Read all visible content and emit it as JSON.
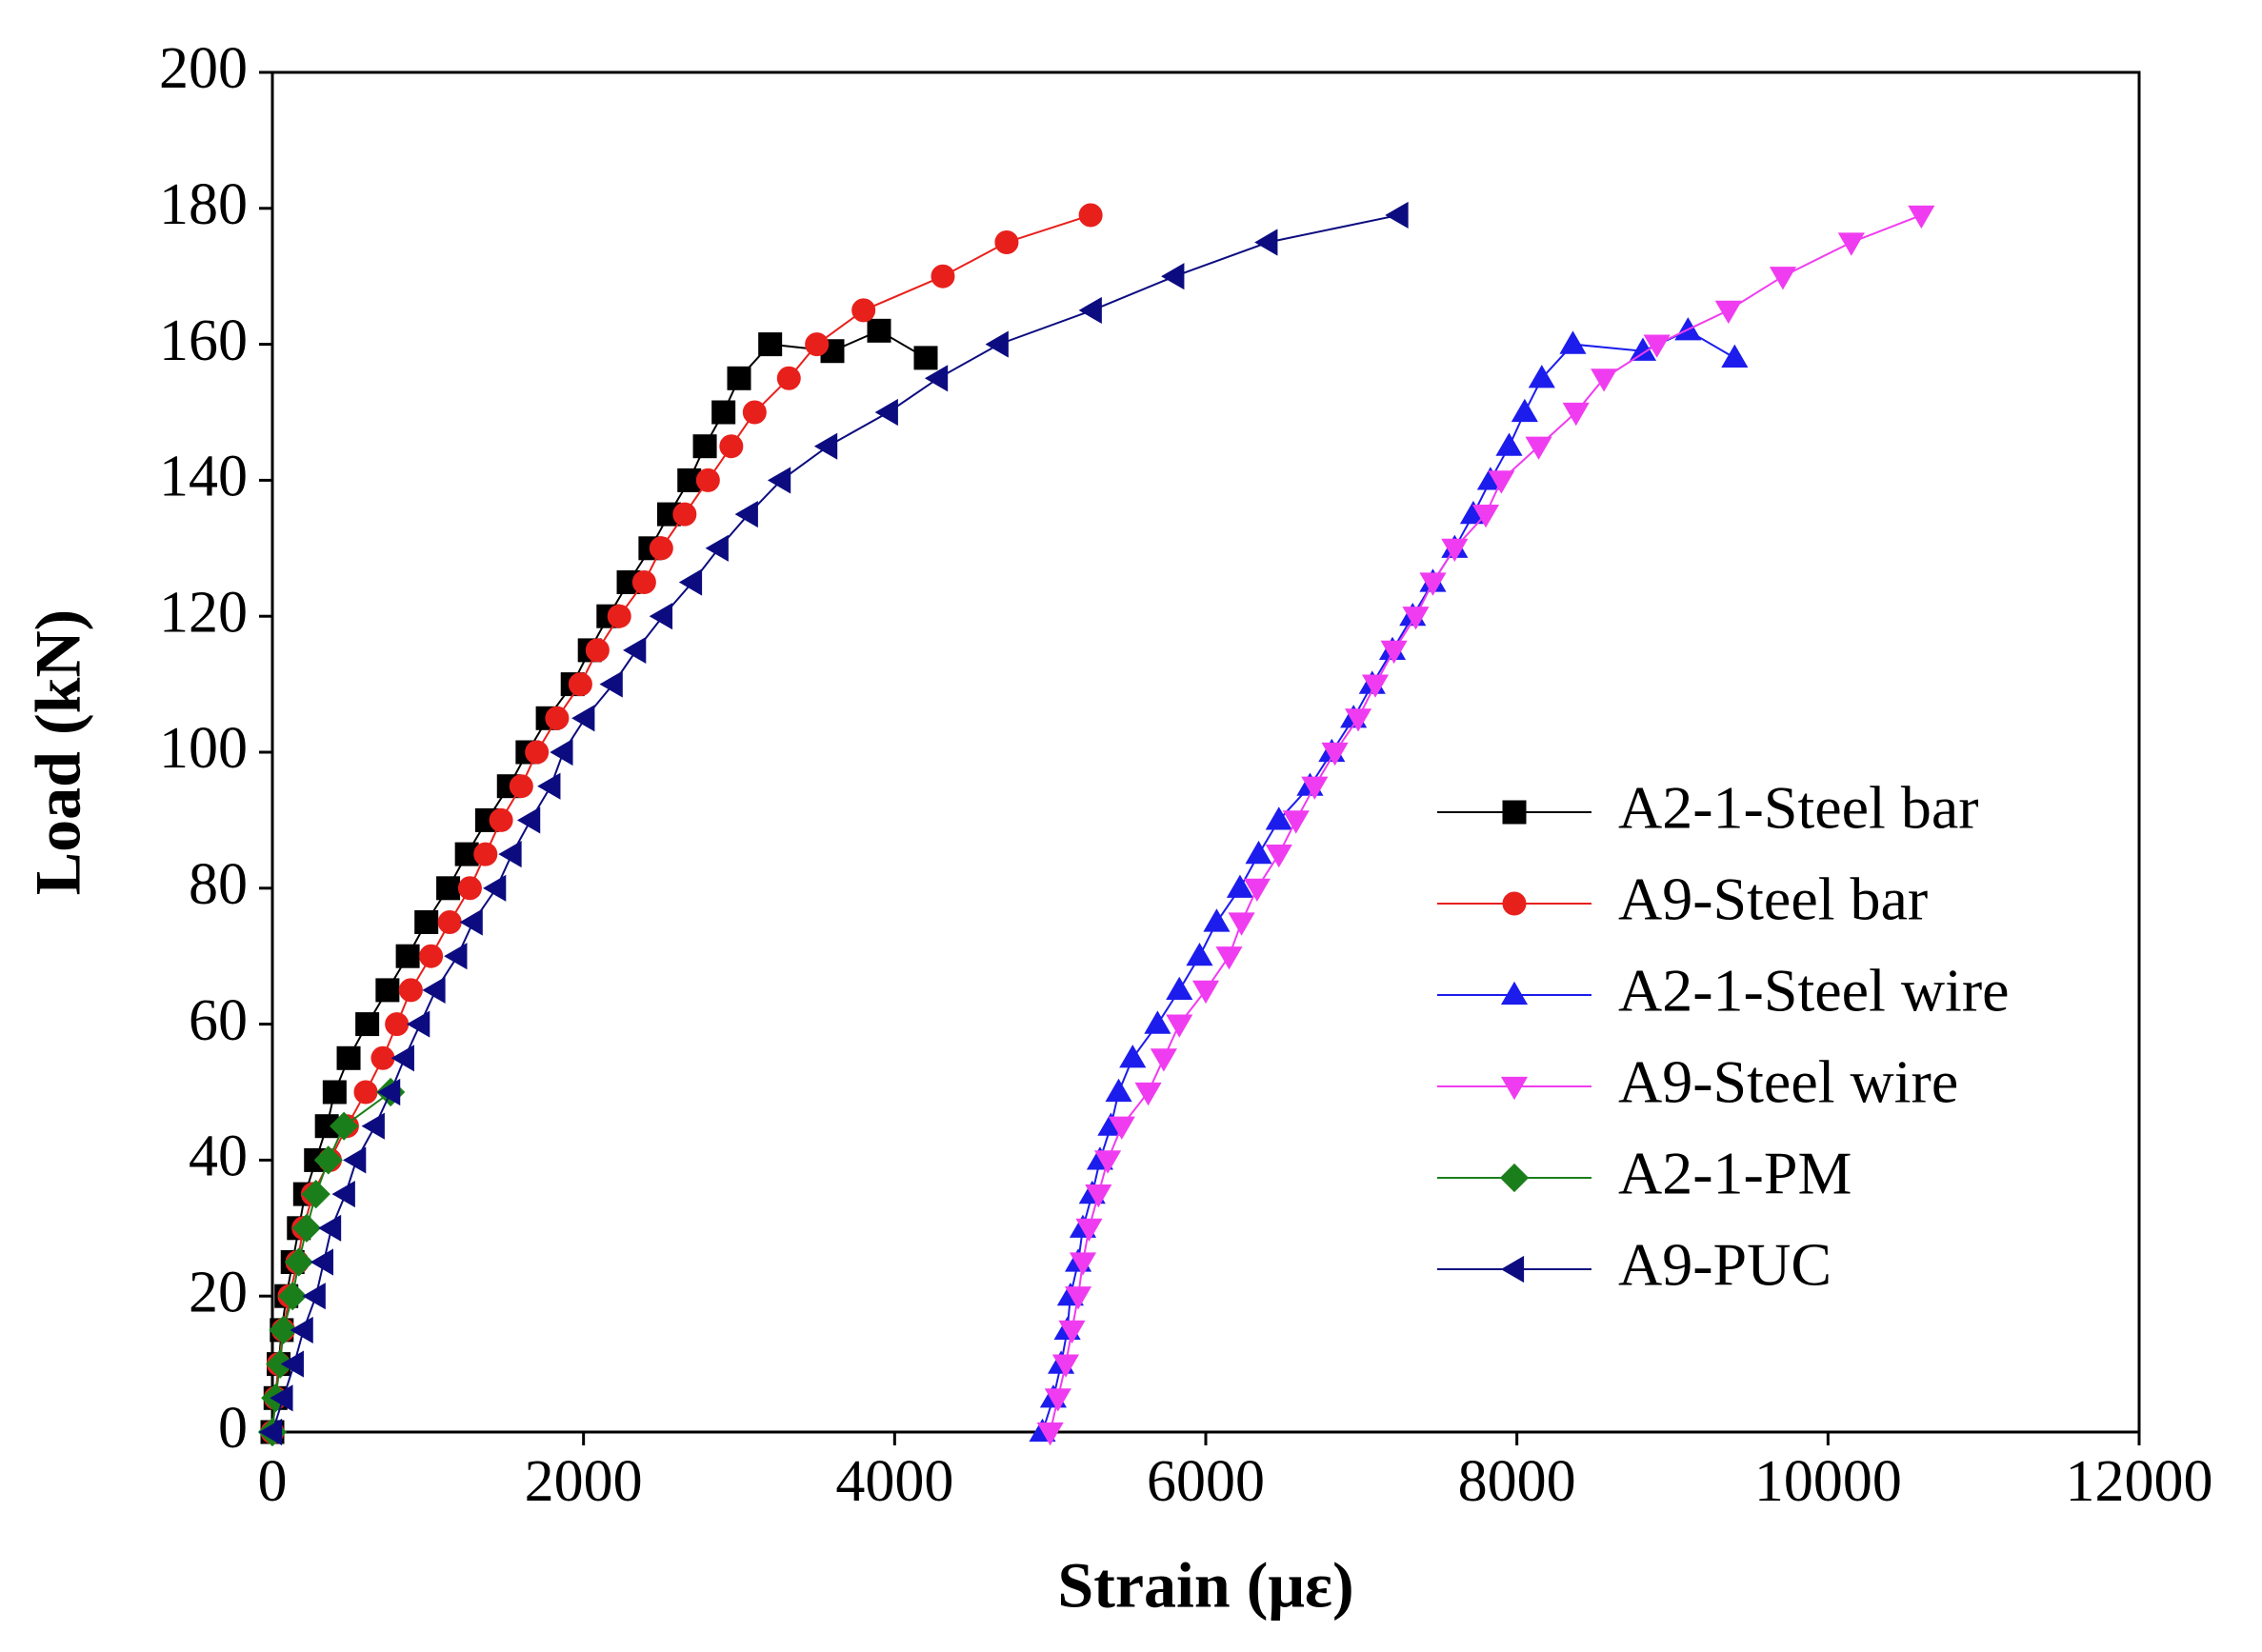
{
  "chart_data": {
    "type": "line",
    "xlabel": "Strain (με)",
    "ylabel": "Load (kN)",
    "xlim": [
      0,
      12000
    ],
    "xticks": [
      0,
      2000,
      4000,
      6000,
      8000,
      10000,
      12000
    ],
    "ylim": [
      0,
      200
    ],
    "yticks": [
      0,
      20,
      40,
      60,
      80,
      100,
      120,
      140,
      160,
      180,
      200
    ],
    "legend": "lower right",
    "series": [
      {
        "name": "A2-1-Steel bar",
        "color": "#000000",
        "marker": "square",
        "x": [
          0,
          20,
          40,
          60,
          90,
          130,
          170,
          210,
          280,
          350,
          400,
          490,
          610,
          740,
          870,
          990,
          1130,
          1250,
          1380,
          1520,
          1640,
          1770,
          1930,
          2040,
          2160,
          2290,
          2430,
          2550,
          2680,
          2780,
          2900,
          3000,
          3200,
          3600,
          3900,
          4200
        ],
        "values": [
          0,
          5,
          10,
          15,
          20,
          25,
          30,
          35,
          40,
          45,
          50,
          55,
          60,
          65,
          70,
          75,
          80,
          85,
          90,
          95,
          100,
          105,
          110,
          115,
          120,
          125,
          130,
          135,
          140,
          145,
          150,
          155,
          160,
          159,
          162,
          158
        ]
      },
      {
        "name": "A9-Steel bar",
        "color": "#e8201c",
        "marker": "circle",
        "x": [
          0,
          20,
          40,
          70,
          110,
          160,
          200,
          260,
          370,
          480,
          600,
          710,
          800,
          890,
          1020,
          1140,
          1270,
          1370,
          1470,
          1600,
          1700,
          1830,
          1980,
          2090,
          2230,
          2390,
          2500,
          2650,
          2800,
          2950,
          3100,
          3320,
          3500,
          3800,
          4310,
          4720,
          5260
        ],
        "values": [
          0,
          5,
          10,
          15,
          20,
          25,
          30,
          35,
          40,
          45,
          50,
          55,
          60,
          65,
          70,
          75,
          80,
          85,
          90,
          95,
          100,
          105,
          110,
          115,
          120,
          125,
          130,
          135,
          140,
          145,
          150,
          155,
          160,
          165,
          170,
          175,
          179
        ]
      },
      {
        "name": "A2-1-Steel wire",
        "color": "#1c1ced",
        "marker": "triangle-up",
        "x": [
          4950,
          5020,
          5070,
          5110,
          5130,
          5180,
          5210,
          5270,
          5320,
          5390,
          5440,
          5530,
          5690,
          5830,
          5960,
          6070,
          6220,
          6340,
          6470,
          6670,
          6810,
          6950,
          7070,
          7200,
          7330,
          7460,
          7600,
          7720,
          7830,
          7950,
          8050,
          8160,
          8360,
          8810,
          9100,
          9400
        ],
        "values": [
          0,
          5,
          10,
          15,
          20,
          25,
          30,
          35,
          40,
          45,
          50,
          55,
          60,
          65,
          70,
          75,
          80,
          85,
          90,
          95,
          100,
          105,
          110,
          115,
          120,
          125,
          130,
          135,
          140,
          145,
          150,
          155,
          160,
          159,
          162,
          158
        ]
      },
      {
        "name": "A9-Steel wire",
        "color": "#f03cf0",
        "marker": "triangle-down",
        "x": [
          5000,
          5050,
          5100,
          5140,
          5180,
          5210,
          5250,
          5310,
          5370,
          5460,
          5630,
          5730,
          5830,
          6000,
          6150,
          6230,
          6330,
          6470,
          6580,
          6700,
          6830,
          6980,
          7090,
          7210,
          7350,
          7460,
          7600,
          7800,
          7900,
          8140,
          8380,
          8560,
          8900,
          9360,
          9710,
          10150,
          10600
        ],
        "values": [
          0,
          5,
          10,
          15,
          20,
          25,
          30,
          35,
          40,
          45,
          50,
          55,
          60,
          65,
          70,
          75,
          80,
          85,
          90,
          95,
          100,
          105,
          110,
          115,
          120,
          125,
          130,
          135,
          140,
          145,
          150,
          155,
          160,
          165,
          170,
          175,
          179
        ]
      },
      {
        "name": "A2-1-PM",
        "color": "#1a7f1a",
        "marker": "diamond",
        "x": [
          0,
          20,
          50,
          70,
          130,
          170,
          220,
          280,
          360,
          460,
          760
        ],
        "values": [
          0,
          5,
          10,
          15,
          20,
          25,
          30,
          35,
          40,
          45,
          50
        ]
      },
      {
        "name": "A9-PUC",
        "color": "#0c0c80",
        "marker": "triangle-left",
        "x": [
          0,
          70,
          140,
          200,
          280,
          330,
          380,
          470,
          540,
          660,
          760,
          850,
          950,
          1050,
          1190,
          1290,
          1440,
          1540,
          1660,
          1790,
          1870,
          2010,
          2190,
          2340,
          2510,
          2700,
          2870,
          3060,
          3270,
          3570,
          3960,
          4280,
          4670,
          5270,
          5800,
          6400,
          7240
        ],
        "values": [
          0,
          5,
          10,
          15,
          20,
          25,
          30,
          35,
          40,
          45,
          50,
          55,
          60,
          65,
          70,
          75,
          80,
          85,
          90,
          95,
          100,
          105,
          110,
          115,
          120,
          125,
          130,
          135,
          140,
          145,
          150,
          155,
          160,
          165,
          170,
          175,
          179
        ]
      }
    ]
  }
}
